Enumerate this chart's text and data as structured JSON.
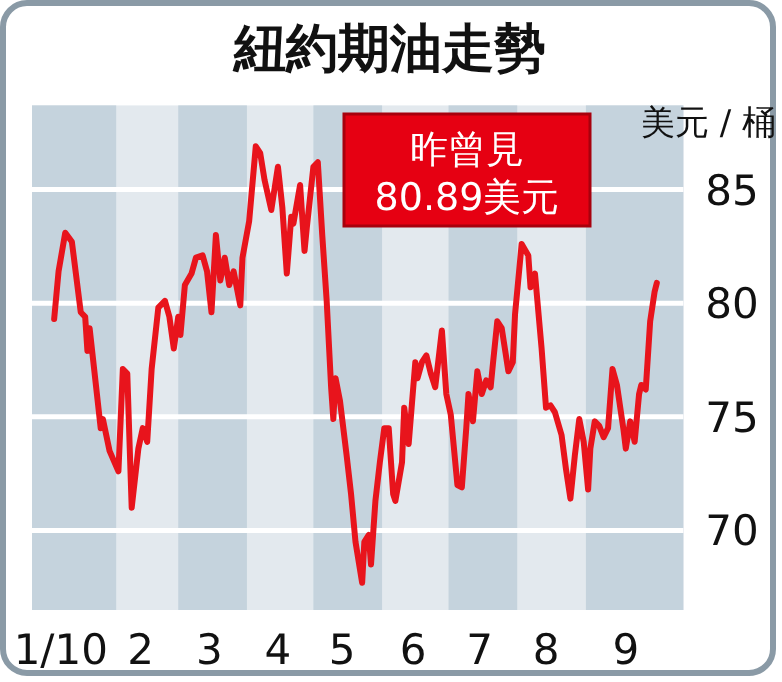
{
  "chart_data": {
    "type": "line",
    "title": "紐約期油走勢",
    "ylabel": "美元 / 桶",
    "annotations": [
      "昨曾見",
      "80.89美元"
    ],
    "xlim": [
      "2009-12-25",
      "2010-10-15"
    ],
    "xticks": [
      {
        "value": "2010-01-07",
        "label": "1/10"
      },
      {
        "value": "2010-02-12",
        "label": "2"
      },
      {
        "value": "2010-03-15",
        "label": "3"
      },
      {
        "value": "2010-04-15",
        "label": "4"
      },
      {
        "value": "2010-05-14",
        "label": "5"
      },
      {
        "value": "2010-06-15",
        "label": "6"
      },
      {
        "value": "2010-07-15",
        "label": "7"
      },
      {
        "value": "2010-08-14",
        "label": "8"
      },
      {
        "value": "2010-09-19",
        "label": "9"
      }
    ],
    "ylim": [
      66.5,
      88.7
    ],
    "yticks": [
      70,
      75,
      80,
      85
    ],
    "grid": "y",
    "bands": [
      {
        "axis": "x",
        "from": "2009-12-25",
        "to": "2010-02-01",
        "color": "#c5d3dd"
      },
      {
        "axis": "x",
        "from": "2010-03-01",
        "to": "2010-04-01",
        "color": "#c5d3dd"
      },
      {
        "axis": "x",
        "from": "2010-05-01",
        "to": "2010-06-01",
        "color": "#c5d3dd"
      },
      {
        "axis": "x",
        "from": "2010-07-01",
        "to": "2010-08-01",
        "color": "#c5d3dd"
      },
      {
        "axis": "x",
        "from": "2010-09-01",
        "to": "2010-10-15",
        "color": "#c5d3dd"
      }
    ],
    "series": [
      {
        "color": "#e8141c",
        "x": [
          "2010-01-04",
          "2010-01-06",
          "2010-01-09",
          "2010-01-12",
          "2010-01-16",
          "2010-01-18",
          "2010-01-19",
          "2010-01-20",
          "2010-01-25",
          "2010-01-26",
          "2010-01-29",
          "2010-02-02",
          "2010-02-04",
          "2010-02-06",
          "2010-02-08",
          "2010-02-11",
          "2010-02-13",
          "2010-02-15",
          "2010-02-17",
          "2010-02-20",
          "2010-02-23",
          "2010-02-25",
          "2010-02-27",
          "2010-03-01",
          "2010-03-02",
          "2010-03-04",
          "2010-03-07",
          "2010-03-09",
          "2010-03-12",
          "2010-03-14",
          "2010-03-16",
          "2010-03-18",
          "2010-03-20",
          "2010-03-22",
          "2010-03-24",
          "2010-03-26",
          "2010-03-29",
          "2010-03-30",
          "2010-04-02",
          "2010-04-05",
          "2010-04-07",
          "2010-04-09",
          "2010-04-12",
          "2010-04-15",
          "2010-04-17",
          "2010-04-19",
          "2010-04-21",
          "2010-04-22",
          "2010-04-25",
          "2010-04-27",
          "2010-04-28",
          "2010-05-01",
          "2010-05-03",
          "2010-05-05",
          "2010-05-07",
          "2010-05-09",
          "2010-05-10",
          "2010-05-11",
          "2010-05-13",
          "2010-05-16",
          "2010-05-18",
          "2010-05-20",
          "2010-05-23",
          "2010-05-24",
          "2010-05-26",
          "2010-05-27",
          "2010-05-29",
          "2010-05-31",
          "2010-06-02",
          "2010-06-04",
          "2010-06-06",
          "2010-06-07",
          "2010-06-10",
          "2010-06-11",
          "2010-06-13",
          "2010-06-16",
          "2010-06-17",
          "2010-06-19",
          "2010-06-21",
          "2010-06-23",
          "2010-06-25",
          "2010-06-28",
          "2010-06-30",
          "2010-07-02",
          "2010-07-05",
          "2010-07-07",
          "2010-07-09",
          "2010-07-10",
          "2010-07-12",
          "2010-07-14",
          "2010-07-16",
          "2010-07-18",
          "2010-07-20",
          "2010-07-21",
          "2010-07-23",
          "2010-07-25",
          "2010-07-28",
          "2010-07-30",
          "2010-07-31",
          "2010-08-03",
          "2010-08-06",
          "2010-08-07",
          "2010-08-09",
          "2010-08-12",
          "2010-08-14",
          "2010-08-16",
          "2010-08-18",
          "2010-08-21",
          "2010-08-23",
          "2010-08-25",
          "2010-08-27",
          "2010-08-29",
          "2010-08-31",
          "2010-09-02",
          "2010-09-03",
          "2010-09-05",
          "2010-09-07",
          "2010-09-09",
          "2010-09-11",
          "2010-09-13",
          "2010-09-15",
          "2010-09-18",
          "2010-09-19",
          "2010-09-21",
          "2010-09-23",
          "2010-09-25",
          "2010-09-26",
          "2010-09-28",
          "2010-09-30",
          "2010-10-02",
          "2010-10-03"
        ],
        "values": [
          79.3,
          81.4,
          83.1,
          82.7,
          79.6,
          79.4,
          77.9,
          78.9,
          74.5,
          74.9,
          73.5,
          72.6,
          77.1,
          76.9,
          71.0,
          73.6,
          74.5,
          73.9,
          77.1,
          79.8,
          80.1,
          79.4,
          78.0,
          79.4,
          78.6,
          80.8,
          81.3,
          82.0,
          82.1,
          81.4,
          79.6,
          83.0,
          81.0,
          82.0,
          80.8,
          81.4,
          79.9,
          82.0,
          83.6,
          86.9,
          86.6,
          85.4,
          84.1,
          86.0,
          84.2,
          81.3,
          83.8,
          83.5,
          85.2,
          82.3,
          83.3,
          86.0,
          86.2,
          83.0,
          80.1,
          76.3,
          74.9,
          76.7,
          75.7,
          73.3,
          71.6,
          69.5,
          67.7,
          69.5,
          69.8,
          68.5,
          71.3,
          73.0,
          74.5,
          74.5,
          71.6,
          71.3,
          73.0,
          75.4,
          73.8,
          77.4,
          76.7,
          77.4,
          77.7,
          76.9,
          76.3,
          78.8,
          76.0,
          75.1,
          72.0,
          71.9,
          74.5,
          76.0,
          74.8,
          77.0,
          76.0,
          76.6,
          76.3,
          77.3,
          79.2,
          78.9,
          77.0,
          77.4,
          79.5,
          82.6,
          82.1,
          80.7,
          81.3,
          78.0,
          75.4,
          75.5,
          75.2,
          74.2,
          72.7,
          71.4,
          73.3,
          74.9,
          73.9,
          71.8,
          73.6,
          74.8,
          74.6,
          74.1,
          74.5,
          77.1,
          76.4,
          74.4,
          73.6,
          74.8,
          73.9,
          76.0,
          76.4,
          76.2,
          79.2,
          80.5,
          80.89
        ]
      }
    ]
  }
}
